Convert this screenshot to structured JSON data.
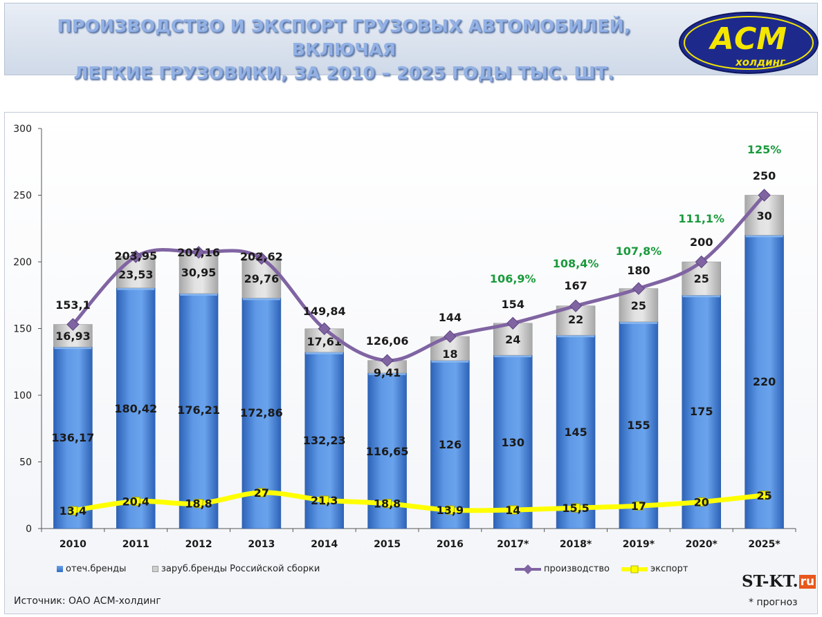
{
  "title": {
    "line1": "ПРОИЗВОДСТВО И ЭКСПОРТ ГРУЗОВЫХ АВТОМОБИЛЕЙ, ВКЛЮЧАЯ",
    "line2": "ЛЕГКИЕ ГРУЗОВИКИ, ЗА 2010 – 2025 ГОДЫ ТЫС. ШТ."
  },
  "logo": {
    "mark": "АСМ",
    "sub": "холдинг"
  },
  "colors": {
    "domestic_bar": "#4a86d8",
    "foreign_bar": "#cfcfcf",
    "production_line": "#8064a2",
    "export_line": "#ffff00",
    "growth_label": "#1a9a3c",
    "brand_yellow": "#f5e600",
    "brand_blue": "#1d2a8c"
  },
  "chart_data": {
    "type": "bar",
    "stacked": true,
    "categories": [
      "2010",
      "2011",
      "2012",
      "2013",
      "2014",
      "2015",
      "2016",
      "2017*",
      "2018*",
      "2019*",
      "2020*",
      "2025*"
    ],
    "ylim": [
      0,
      300
    ],
    "yticks": [
      0,
      50,
      100,
      150,
      200,
      250,
      300
    ],
    "series": [
      {
        "name": "отеч.бренды",
        "kind": "bar",
        "values": [
          136.17,
          180.42,
          176.21,
          172.86,
          132.23,
          116.65,
          126,
          130,
          145,
          155,
          175,
          220
        ],
        "labels": [
          "136,17",
          "180,42",
          "176,21",
          "172,86",
          "132,23",
          "116,65",
          "126",
          "130",
          "145",
          "155",
          "175",
          "220"
        ]
      },
      {
        "name": "заруб.бренды Российской сборки",
        "kind": "bar",
        "values": [
          16.93,
          23.53,
          30.95,
          29.76,
          17.61,
          9.41,
          18,
          24,
          22,
          25,
          25,
          30
        ],
        "labels": [
          "16,93",
          "23,53",
          "30,95",
          "29,76",
          "17,61",
          "9,41",
          "18",
          "24",
          "22",
          "25",
          "25",
          "30"
        ]
      },
      {
        "name": "производство",
        "kind": "line",
        "values": [
          153.1,
          203.95,
          207.16,
          202.62,
          149.84,
          126.06,
          144,
          154,
          167,
          180,
          200,
          250
        ],
        "labels": [
          "153,1",
          "203,95",
          "207,16",
          "202,62",
          "149,84",
          "126,06",
          "144",
          "154",
          "167",
          "180",
          "200",
          "250"
        ]
      },
      {
        "name": "экспорт",
        "kind": "line",
        "values": [
          13.4,
          20.4,
          18.8,
          27,
          21.3,
          18.8,
          13.9,
          14,
          15.5,
          17,
          20,
          25
        ],
        "labels": [
          "13,4",
          "20,4",
          "18,8",
          "27",
          "21,3",
          "18,8",
          "13,9",
          "14",
          "15,5",
          "17",
          "20",
          "25"
        ]
      }
    ],
    "growth_annotations": [
      {
        "category": "2017*",
        "label": "106,9%"
      },
      {
        "category": "2018*",
        "label": "108,4%"
      },
      {
        "category": "2019*",
        "label": "107,8%"
      },
      {
        "category": "2020*",
        "label": "111,1%"
      },
      {
        "category": "2025*",
        "label": "125%"
      }
    ],
    "grid": false,
    "legend": "bottom"
  },
  "legend": {
    "domestic": "отеч.бренды",
    "foreign": "заруб.бренды Российской сборки",
    "production": "производство",
    "export": "экспорт"
  },
  "footer": {
    "source": "Источник: ОАО АСМ-холдинг",
    "forecast_note": "* прогноз",
    "watermark_main": "ST-KT.",
    "watermark_tld": "ru"
  }
}
